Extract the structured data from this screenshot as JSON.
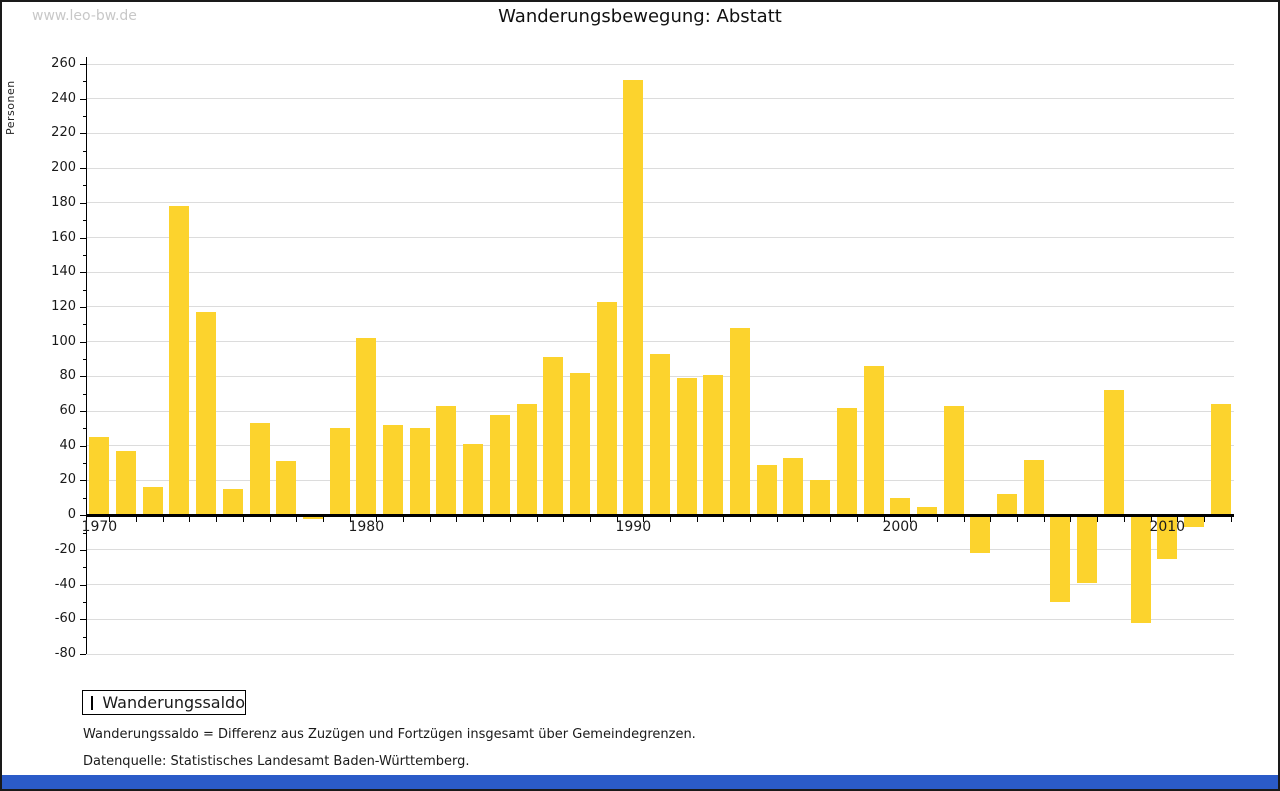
{
  "watermark": "www.leo-bw.de",
  "header": {
    "title": "Wanderungsbewegung: Abstatt"
  },
  "chart_data": {
    "type": "bar",
    "title": "Wanderungsbewegung: Abstatt",
    "xlabel": "",
    "ylabel": "Personen",
    "ylim": [
      -80,
      260
    ],
    "ytick_step": 20,
    "grid": true,
    "legend_position": "bottom-left",
    "categories": [
      1970,
      1971,
      1972,
      1973,
      1974,
      1975,
      1976,
      1977,
      1978,
      1979,
      1980,
      1981,
      1982,
      1983,
      1984,
      1985,
      1986,
      1987,
      1988,
      1989,
      1990,
      1991,
      1992,
      1993,
      1994,
      1995,
      1996,
      1997,
      1998,
      1999,
      2000,
      2001,
      2002,
      2003,
      2004,
      2005,
      2006,
      2007,
      2008,
      2009,
      2010,
      2011,
      2012
    ],
    "series": [
      {
        "name": "Wanderungssaldo",
        "color": "#FCD32D",
        "values": [
          45,
          37,
          16,
          178,
          117,
          15,
          53,
          31,
          -2,
          50,
          102,
          52,
          50,
          63,
          41,
          58,
          64,
          91,
          82,
          123,
          251,
          93,
          79,
          81,
          108,
          29,
          33,
          20,
          62,
          86,
          10,
          5,
          63,
          -22,
          12,
          32,
          -50,
          -39,
          72,
          -62,
          -25,
          -7,
          64
        ]
      }
    ],
    "xticks_labeled": [
      1970,
      1980,
      1990,
      2000,
      2010
    ]
  },
  "legend": {
    "label": "Wanderungssaldo",
    "swatch_color": "#FCD32D"
  },
  "footnotes": {
    "definition": "Wanderungssaldo = Differenz aus Zuzügen und Fortzügen insgesamt über Gemeindegrenzen.",
    "source": "Datenquelle: Statistisches Landesamt Baden-Württemberg."
  },
  "colors": {
    "bar": "#FCD32D",
    "grid": "#DCDCDC",
    "axis": "#000000",
    "watermark": "#C8C8C8",
    "footer_bar": "#2B5BC8"
  }
}
